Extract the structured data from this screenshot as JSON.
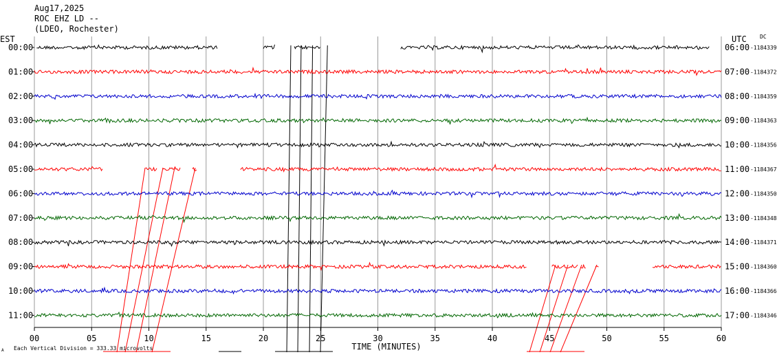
{
  "header": {
    "date": "Aug17,2025",
    "station": "ROC EHZ LD --",
    "network": "(LDEO, Rochester)"
  },
  "left_axis_label": "EST",
  "right_axis_label": "UTC",
  "dc_label": "DC",
  "footer": {
    "scale_text": "Each Vertical Division =  333.33 microvolts",
    "small_mark": "A"
  },
  "chart_data": {
    "type": "line",
    "title": "",
    "xlabel": "TIME (MINUTES)",
    "xlim": [
      0,
      60
    ],
    "x_ticks": [
      0,
      5,
      10,
      15,
      20,
      25,
      30,
      35,
      40,
      45,
      50,
      55,
      60
    ],
    "x_tick_labels": [
      "00",
      "05",
      "10",
      "15",
      "20",
      "25",
      "30",
      "35",
      "40",
      "45",
      "50",
      "55",
      "60"
    ],
    "grid": true,
    "series_colors": [
      "#000000",
      "#ff0000",
      "#0000cc",
      "#006600"
    ],
    "rows": [
      {
        "est": "00:00",
        "utc": "06:00",
        "dc": "-1184339",
        "color": "#000000",
        "segments": [
          [
            0.2,
            16.0
          ],
          [
            20.0,
            21.0
          ],
          [
            22.7,
            25.0
          ],
          [
            32.0,
            59.0
          ]
        ]
      },
      {
        "est": "01:00",
        "utc": "07:00",
        "dc": "-1184372",
        "color": "#ff0000",
        "segments": [
          [
            0,
            60
          ]
        ]
      },
      {
        "est": "02:00",
        "utc": "08:00",
        "dc": "-1184359",
        "color": "#0000cc",
        "segments": [
          [
            0,
            60
          ]
        ]
      },
      {
        "est": "03:00",
        "utc": "09:00",
        "dc": "-1184363",
        "color": "#006600",
        "segments": [
          [
            0,
            60
          ]
        ]
      },
      {
        "est": "04:00",
        "utc": "10:00",
        "dc": "-1184356",
        "color": "#000000",
        "segments": [
          [
            0,
            60
          ]
        ]
      },
      {
        "est": "05:00",
        "utc": "11:00",
        "dc": "-1184367",
        "color": "#ff0000",
        "segments": [
          [
            0,
            6.0
          ],
          [
            9.7,
            10.7
          ],
          [
            11.2,
            12.8
          ],
          [
            13.8,
            14.2
          ],
          [
            18.0,
            60
          ]
        ]
      },
      {
        "est": "06:00",
        "utc": "12:00",
        "dc": "-1184350",
        "color": "#0000cc",
        "segments": [
          [
            0,
            60
          ]
        ]
      },
      {
        "est": "07:00",
        "utc": "13:00",
        "dc": "-1184348",
        "color": "#006600",
        "segments": [
          [
            0,
            60
          ]
        ]
      },
      {
        "est": "08:00",
        "utc": "14:00",
        "dc": "-1184371",
        "color": "#000000",
        "segments": [
          [
            0,
            60
          ]
        ]
      },
      {
        "est": "09:00",
        "utc": "15:00",
        "dc": "-1184360",
        "color": "#ff0000",
        "segments": [
          [
            0,
            43.0
          ],
          [
            45.2,
            47.5
          ],
          [
            47.7,
            48.2
          ],
          [
            49.0,
            49.3
          ],
          [
            54.0,
            60
          ]
        ]
      },
      {
        "est": "10:00",
        "utc": "16:00",
        "dc": "-1184366",
        "color": "#0000cc",
        "segments": [
          [
            0,
            60
          ]
        ]
      },
      {
        "est": "11:00",
        "utc": "17:00",
        "dc": "-1184346",
        "color": "#006600",
        "segments": [
          [
            0,
            60
          ]
        ]
      }
    ]
  }
}
